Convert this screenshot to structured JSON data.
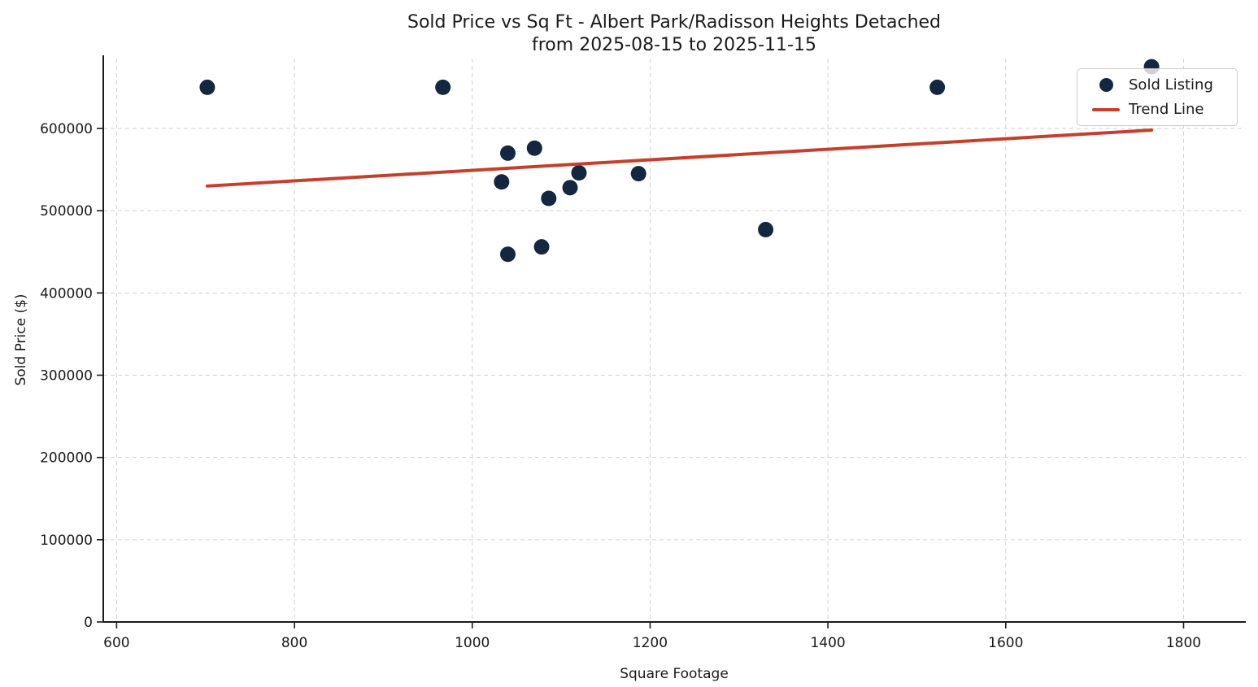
{
  "chart_data": {
    "type": "scatter",
    "title": [
      "Sold Price vs Sq Ft - Albert Park/Radisson Heights Detached",
      "from 2025-08-15 to 2025-11-15"
    ],
    "xlabel": "Square Footage",
    "ylabel": "Sold Price ($)",
    "xlim": [
      585,
      1870
    ],
    "ylim": [
      0,
      685000
    ],
    "x_ticks": [
      600,
      800,
      1000,
      1200,
      1400,
      1600,
      1800
    ],
    "y_ticks": [
      0,
      100000,
      200000,
      300000,
      400000,
      500000,
      600000
    ],
    "grid": true,
    "grid_style": "dashed",
    "legend_position": "upper right",
    "series": [
      {
        "name": "Sold Listing",
        "type": "scatter",
        "color": "#132741",
        "marker_size": 9.5,
        "points": [
          {
            "x": 702,
            "y": 650000
          },
          {
            "x": 967,
            "y": 650000
          },
          {
            "x": 1033,
            "y": 535000
          },
          {
            "x": 1040,
            "y": 570000
          },
          {
            "x": 1040,
            "y": 447000
          },
          {
            "x": 1070,
            "y": 576000
          },
          {
            "x": 1078,
            "y": 456000
          },
          {
            "x": 1086,
            "y": 515000
          },
          {
            "x": 1110,
            "y": 528000
          },
          {
            "x": 1120,
            "y": 546000
          },
          {
            "x": 1187,
            "y": 545000
          },
          {
            "x": 1330,
            "y": 477000
          },
          {
            "x": 1523,
            "y": 650000
          },
          {
            "x": 1764,
            "y": 675000
          }
        ]
      },
      {
        "name": "Trend Line",
        "type": "line",
        "color": "#C4402C",
        "line_width": 4,
        "points": [
          {
            "x": 702,
            "y": 530000
          },
          {
            "x": 1764,
            "y": 598000
          }
        ]
      }
    ],
    "legend": [
      {
        "label": "Sold Listing",
        "marker": "dot",
        "color": "#132741"
      },
      {
        "label": "Trend Line",
        "marker": "line",
        "color": "#C4402C"
      }
    ]
  },
  "colors": {
    "background": "#ffffff",
    "point": "#132741",
    "trend": "#C4402C",
    "grid": "#d0d0d0",
    "axis": "#1a1a1a",
    "text": "#1a1a1a"
  }
}
